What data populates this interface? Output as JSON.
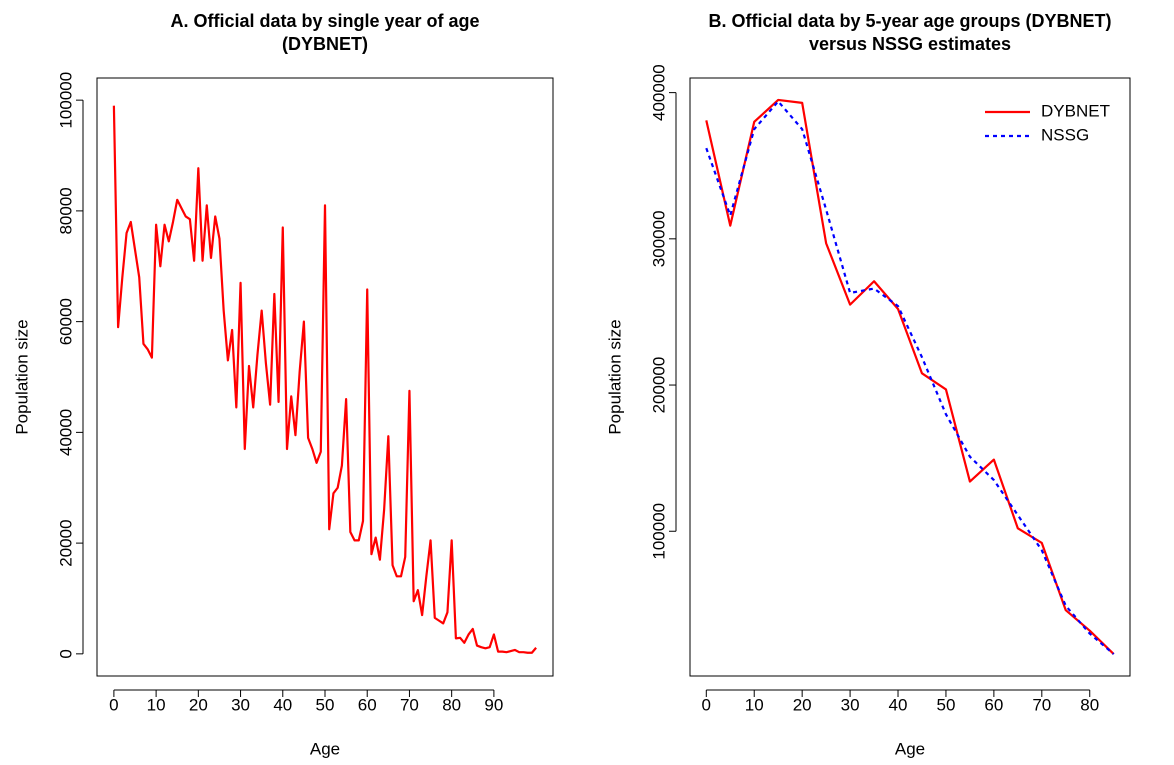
{
  "chart_data": [
    {
      "type": "line",
      "title": [
        "A. Official data by single year of age",
        "(DYBNET)"
      ],
      "xlabel": "Age",
      "ylabel": "Population size",
      "x": [
        0,
        1,
        2,
        3,
        4,
        5,
        6,
        7,
        8,
        9,
        10,
        11,
        12,
        13,
        14,
        15,
        16,
        17,
        18,
        19,
        20,
        21,
        22,
        23,
        24,
        25,
        26,
        27,
        28,
        29,
        30,
        31,
        32,
        33,
        34,
        35,
        36,
        37,
        38,
        39,
        40,
        41,
        42,
        43,
        44,
        45,
        46,
        47,
        48,
        49,
        50,
        51,
        52,
        53,
        54,
        55,
        56,
        57,
        58,
        59,
        60,
        61,
        62,
        63,
        64,
        65,
        66,
        67,
        68,
        69,
        70,
        71,
        72,
        73,
        74,
        75,
        76,
        77,
        78,
        79,
        80,
        81,
        82,
        83,
        84,
        85,
        86,
        87,
        88,
        89,
        90,
        91,
        92,
        93,
        94,
        95,
        96,
        97,
        98,
        99,
        100
      ],
      "values": [
        99000,
        59000,
        68000,
        76000,
        78000,
        73000,
        68000,
        56000,
        55000,
        53500,
        77500,
        70000,
        77500,
        74500,
        78000,
        82000,
        80500,
        79000,
        78500,
        71000,
        87700,
        71000,
        81000,
        71500,
        79000,
        75000,
        62000,
        53000,
        58500,
        44500,
        67000,
        37000,
        52000,
        44500,
        54000,
        62000,
        52500,
        45000,
        65000,
        45500,
        77000,
        37000,
        46500,
        39500,
        51000,
        60000,
        39000,
        37000,
        34500,
        36500,
        81000,
        22500,
        29000,
        30000,
        34000,
        46000,
        22000,
        20500,
        20500,
        24000,
        65800,
        18000,
        21000,
        17000,
        26000,
        39300,
        16000,
        14000,
        14000,
        17500,
        47500,
        9500,
        11500,
        7000,
        14000,
        20500,
        6500,
        6000,
        5500,
        7500,
        20500,
        2800,
        2900,
        2000,
        3500,
        4500,
        1500,
        1200,
        1000,
        1200,
        3500,
        400,
        400,
        300,
        500,
        700,
        300,
        300,
        200,
        200,
        1100
      ],
      "color": "#ff0000",
      "xlim": [
        -4,
        104
      ],
      "xticks": [
        0,
        10,
        20,
        30,
        40,
        50,
        60,
        70,
        80,
        90
      ],
      "ylim": [
        -4000,
        104000
      ],
      "yticks": [
        0,
        20000,
        40000,
        60000,
        80000,
        100000
      ]
    },
    {
      "type": "line",
      "title": [
        "B. Official data by 5-year age groups (DYBNET)",
        "versus NSSG estimates"
      ],
      "xlabel": "Age",
      "ylabel": "Population size",
      "x": [
        0,
        5,
        10,
        15,
        20,
        25,
        30,
        35,
        40,
        45,
        50,
        55,
        60,
        65,
        70,
        75,
        80,
        85
      ],
      "series": [
        {
          "name": "DYBNET",
          "color": "#ff0000",
          "linestyle": "solid",
          "values": [
            381000,
            309000,
            380000,
            395000,
            393000,
            297000,
            255000,
            271000,
            252000,
            208000,
            197000,
            134000,
            149000,
            102000,
            92000,
            46000,
            32000,
            16000
          ]
        },
        {
          "name": "NSSG",
          "color": "#0000ff",
          "linestyle": "dotted",
          "values": [
            362000,
            316000,
            375000,
            394000,
            375000,
            320000,
            263000,
            266000,
            254000,
            219000,
            180000,
            151000,
            135000,
            111000,
            87000,
            49000,
            30000,
            16000
          ]
        }
      ],
      "legend": "topright",
      "xlim": [
        -3.4,
        88.4
      ],
      "xticks": [
        0,
        10,
        20,
        30,
        40,
        50,
        60,
        70,
        80
      ],
      "ylim": [
        1000,
        410000
      ],
      "yticks": [
        100000,
        200000,
        300000,
        400000
      ]
    }
  ]
}
